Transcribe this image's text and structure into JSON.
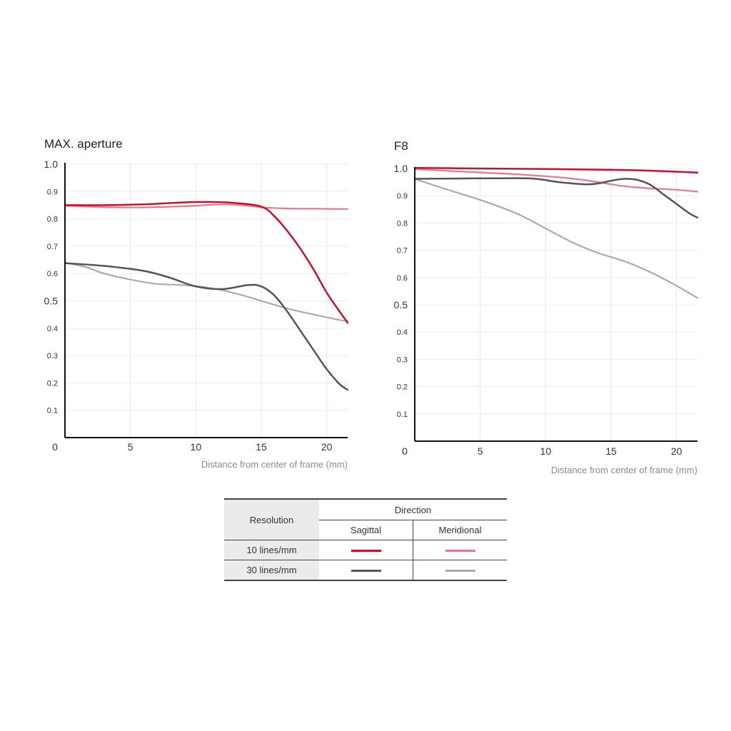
{
  "chart_data": [
    {
      "type": "line",
      "title": "MAX. aperture",
      "xlabel": "Distance from center of frame (mm)",
      "ylabel": "",
      "xlim": [
        0,
        21.6
      ],
      "ylim": [
        0,
        1.0
      ],
      "x_ticks": [
        "0",
        "5",
        "10",
        "15",
        "20"
      ],
      "y_ticks": [
        "1.0",
        "0.9",
        "0.8",
        "0.7",
        "0.6",
        "0.5",
        "0.4",
        "0.3",
        "0.2",
        "0.1"
      ],
      "grid": true,
      "series": [
        {
          "key": "s10",
          "color": "#c8102e",
          "x": [
            0,
            3,
            6,
            9,
            11,
            13,
            15,
            16,
            17,
            18,
            19,
            20,
            21,
            21.6
          ],
          "y": [
            0.85,
            0.85,
            0.853,
            0.86,
            0.862,
            0.858,
            0.845,
            0.81,
            0.755,
            0.69,
            0.615,
            0.53,
            0.46,
            0.42
          ]
        },
        {
          "key": "m10",
          "color": "#e07a8c",
          "x": [
            0,
            3,
            6,
            9,
            12,
            14,
            15,
            17,
            19,
            21.6
          ],
          "y": [
            0.848,
            0.843,
            0.842,
            0.846,
            0.853,
            0.848,
            0.842,
            0.838,
            0.837,
            0.836
          ]
        },
        {
          "key": "s30",
          "color": "#555555",
          "x": [
            0,
            3,
            6,
            8,
            10,
            12,
            14,
            15,
            16,
            17,
            18,
            19,
            20,
            21,
            21.6
          ],
          "y": [
            0.638,
            0.628,
            0.61,
            0.585,
            0.553,
            0.543,
            0.558,
            0.553,
            0.52,
            0.46,
            0.39,
            0.32,
            0.25,
            0.195,
            0.175
          ]
        },
        {
          "key": "m30",
          "color": "#aaaaaa",
          "x": [
            0,
            1.5,
            3,
            5,
            7,
            9,
            11,
            13,
            15,
            17,
            19,
            21,
            21.6
          ],
          "y": [
            0.64,
            0.625,
            0.6,
            0.578,
            0.562,
            0.558,
            0.548,
            0.528,
            0.5,
            0.472,
            0.45,
            0.43,
            0.427
          ]
        }
      ]
    },
    {
      "type": "line",
      "title": "F8",
      "xlabel": "Distance from center of frame (mm)",
      "ylabel": "",
      "xlim": [
        0,
        21.6
      ],
      "ylim": [
        0,
        1.0
      ],
      "x_ticks": [
        "0",
        "5",
        "10",
        "15",
        "20"
      ],
      "y_ticks": [
        "1.0",
        "0.9",
        "0.8",
        "0.7",
        "0.6",
        "0.5",
        "0.4",
        "0.3",
        "0.2",
        "0.1"
      ],
      "grid": true,
      "series": [
        {
          "key": "s10",
          "color": "#c8102e",
          "x": [
            0,
            5,
            10,
            15,
            18,
            21.6
          ],
          "y": [
            1.002,
            1.0,
            0.998,
            0.995,
            0.992,
            0.985
          ]
        },
        {
          "key": "m10",
          "color": "#e07a8c",
          "x": [
            0,
            3,
            6,
            9,
            12,
            14,
            16,
            18,
            20,
            21.6
          ],
          "y": [
            0.998,
            0.99,
            0.983,
            0.975,
            0.963,
            0.95,
            0.935,
            0.927,
            0.922,
            0.915
          ]
        },
        {
          "key": "s30",
          "color": "#555555",
          "x": [
            0,
            3,
            6,
            9,
            11,
            13,
            14,
            15,
            16,
            17,
            18,
            19,
            20,
            21,
            21.6
          ],
          "y": [
            0.962,
            0.963,
            0.964,
            0.963,
            0.95,
            0.942,
            0.945,
            0.955,
            0.962,
            0.958,
            0.94,
            0.905,
            0.87,
            0.835,
            0.82
          ]
        },
        {
          "key": "m30",
          "color": "#aaaaaa",
          "x": [
            0,
            2,
            4,
            6,
            8,
            10,
            12,
            14,
            16,
            18,
            20,
            21.6
          ],
          "y": [
            0.962,
            0.93,
            0.9,
            0.868,
            0.83,
            0.78,
            0.73,
            0.69,
            0.66,
            0.62,
            0.57,
            0.525
          ]
        }
      ]
    }
  ],
  "legend": {
    "resolution_label": "Resolution",
    "direction_label": "Direction",
    "sagittal_label": "Sagittal",
    "meridional_label": "Meridional",
    "rows": [
      {
        "label": "10 lines/mm",
        "sagittal_color": "#c8102e",
        "meridional_color": "#e07a8c"
      },
      {
        "label": "30 lines/mm",
        "sagittal_color": "#555555",
        "meridional_color": "#aaaaaa"
      }
    ]
  }
}
